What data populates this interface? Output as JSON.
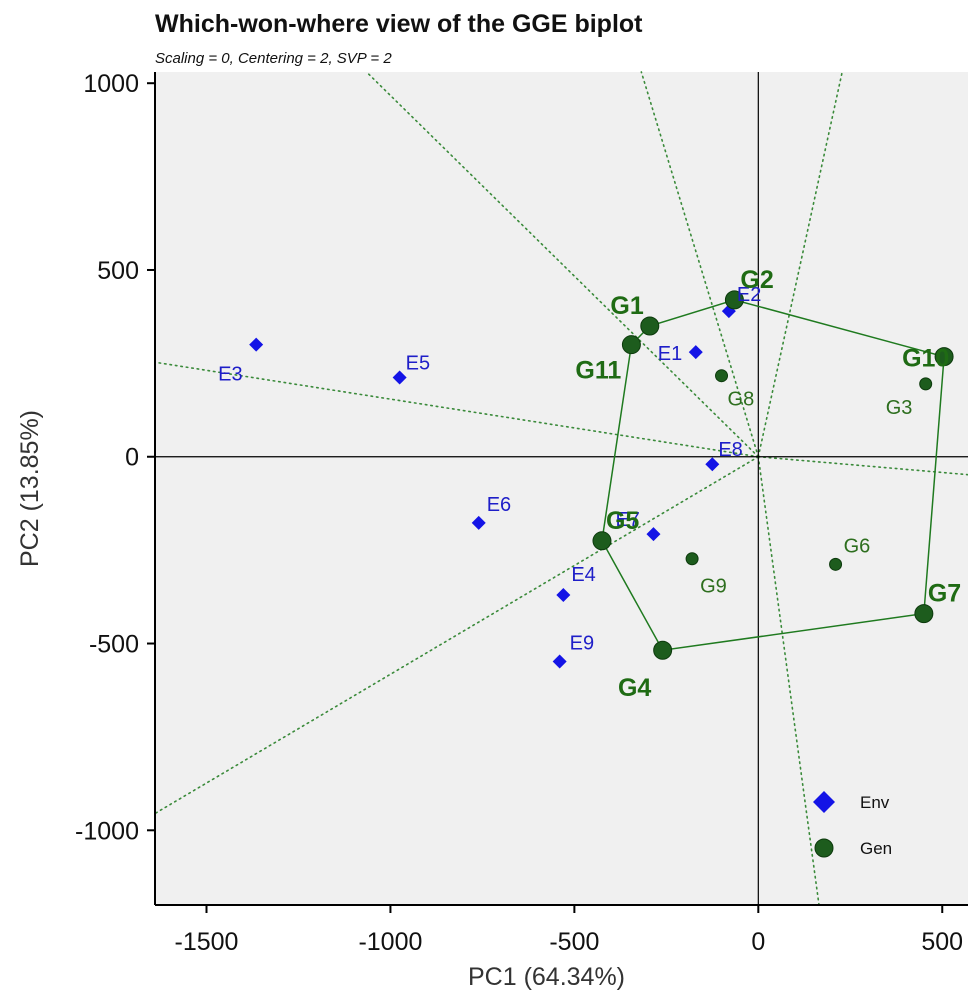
{
  "chart_data": {
    "type": "scatter",
    "title": "Which-won-where view of the GGE biplot",
    "subtitle": "Scaling = 0, Centering = 2, SVP = 2",
    "xlabel": "PC1 (64.34%)",
    "ylabel": "PC2 (13.85%)",
    "xlim": [
      -1640,
      570
    ],
    "ylim": [
      -1200,
      1030
    ],
    "x_ticks": [
      -1500,
      -1000,
      -500,
      0,
      500
    ],
    "y_ticks": [
      1000,
      500,
      0,
      -500,
      -1000
    ],
    "x_tick_labels": [
      "-1500",
      "-1000",
      "-500",
      "0",
      "500"
    ],
    "y_tick_labels": [
      "1000",
      "500",
      "0",
      "-500",
      "-1000"
    ],
    "grid": false,
    "legend_position": "bottom-right",
    "legend": [
      {
        "name": "Env",
        "color": "#1414e6",
        "marker": "diamond"
      },
      {
        "name": "Gen",
        "color": "#1d5c1d",
        "marker": "circle"
      }
    ],
    "series": [
      {
        "name": "Env",
        "color": "#1414e6",
        "marker": "diamond",
        "points": [
          {
            "label": "E1",
            "x": -170,
            "y": 280
          },
          {
            "label": "E2",
            "x": -80,
            "y": 390
          },
          {
            "label": "E3",
            "x": -1365,
            "y": 300
          },
          {
            "label": "E4",
            "x": -530,
            "y": -370
          },
          {
            "label": "E5",
            "x": -975,
            "y": 212
          },
          {
            "label": "E6",
            "x": -760,
            "y": -177
          },
          {
            "label": "E7",
            "x": -285,
            "y": -207
          },
          {
            "label": "E8",
            "x": -125,
            "y": -20
          },
          {
            "label": "E9",
            "x": -540,
            "y": -548
          }
        ]
      },
      {
        "name": "Gen",
        "color": "#1d5c1d",
        "marker": "circle",
        "points": [
          {
            "label": "G1",
            "x": -295,
            "y": 350,
            "vertex": true
          },
          {
            "label": "G2",
            "x": -65,
            "y": 420,
            "vertex": true
          },
          {
            "label": "G3",
            "x": 455,
            "y": 195,
            "vertex": false
          },
          {
            "label": "G4",
            "x": -260,
            "y": -518,
            "vertex": true
          },
          {
            "label": "G5",
            "x": -425,
            "y": -225,
            "vertex": true
          },
          {
            "label": "G6",
            "x": 210,
            "y": -288,
            "vertex": false
          },
          {
            "label": "G7",
            "x": 450,
            "y": -420,
            "vertex": true
          },
          {
            "label": "G8",
            "x": -100,
            "y": 217,
            "vertex": false
          },
          {
            "label": "G9",
            "x": -180,
            "y": -273,
            "vertex": false
          },
          {
            "label": "G10",
            "x": 505,
            "y": 268,
            "vertex": true
          },
          {
            "label": "G11",
            "x": -345,
            "y": 300,
            "vertex": true
          }
        ]
      }
    ],
    "polygon": [
      "G11",
      "G1",
      "G2",
      "G10",
      "G7",
      "G4",
      "G5"
    ],
    "sector_rays": [
      {
        "from": [
          0,
          0
        ],
        "to": [
          -1640,
          -955
        ]
      },
      {
        "from": [
          0,
          0
        ],
        "to": [
          -1640,
          253
        ]
      },
      {
        "from": [
          0,
          0
        ],
        "to": [
          -1065,
          1030
        ]
      },
      {
        "from": [
          0,
          0
        ],
        "to": [
          -318,
          1030
        ]
      },
      {
        "from": [
          0,
          0
        ],
        "to": [
          228,
          1030
        ]
      },
      {
        "from": [
          0,
          0
        ],
        "to": [
          570,
          -48
        ]
      },
      {
        "from": [
          0,
          0
        ],
        "to": [
          165,
          -1200
        ]
      }
    ]
  }
}
